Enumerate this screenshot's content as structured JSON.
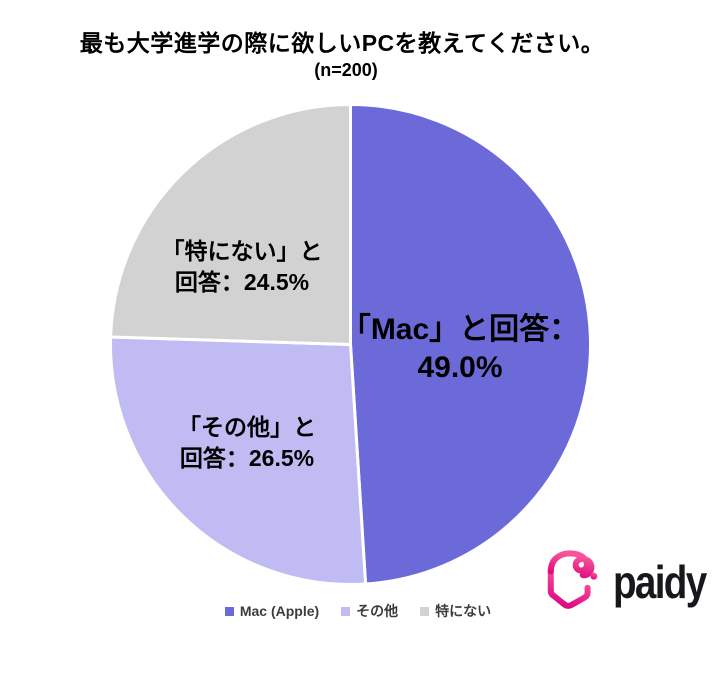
{
  "chart_data": {
    "type": "pie",
    "title": "最も大学進学の際に欲しいPCを教えてください。",
    "subtitle": "(n=200)",
    "sample_size": 200,
    "categories": [
      "Mac (Apple)",
      "その他",
      "特にない"
    ],
    "values": [
      49.0,
      26.5,
      24.5
    ],
    "unit": "%",
    "colors": [
      "#6C6AD8",
      "#C0BBF2",
      "#D2D2D2"
    ],
    "start_angle": "top",
    "direction": "clockwise",
    "slice_border_color": "#FFFFFF",
    "slice_labels": [
      {
        "line1": "「Mac」と回答：",
        "line2": "49.0%"
      },
      {
        "line1": "「その他」と",
        "line2": "回答：26.5%"
      },
      {
        "line1": "「特にない」と",
        "line2": "回答：24.5%"
      }
    ],
    "legend": {
      "position": "bottom",
      "items": [
        {
          "id": "mac-apple",
          "label": "Mac (Apple)",
          "color": "#6C6AD8"
        },
        {
          "id": "sonota",
          "label": "その他",
          "color": "#C0BBF2"
        },
        {
          "id": "tokuninai",
          "label": "特にない",
          "color": "#D2D2D2"
        }
      ]
    }
  },
  "logo": {
    "text": "paidy",
    "mark": "paidy-heart-mark",
    "text_color": "#17171C",
    "mark_gradient_top": "#F8549B",
    "mark_gradient_bottom": "#DB0080"
  }
}
